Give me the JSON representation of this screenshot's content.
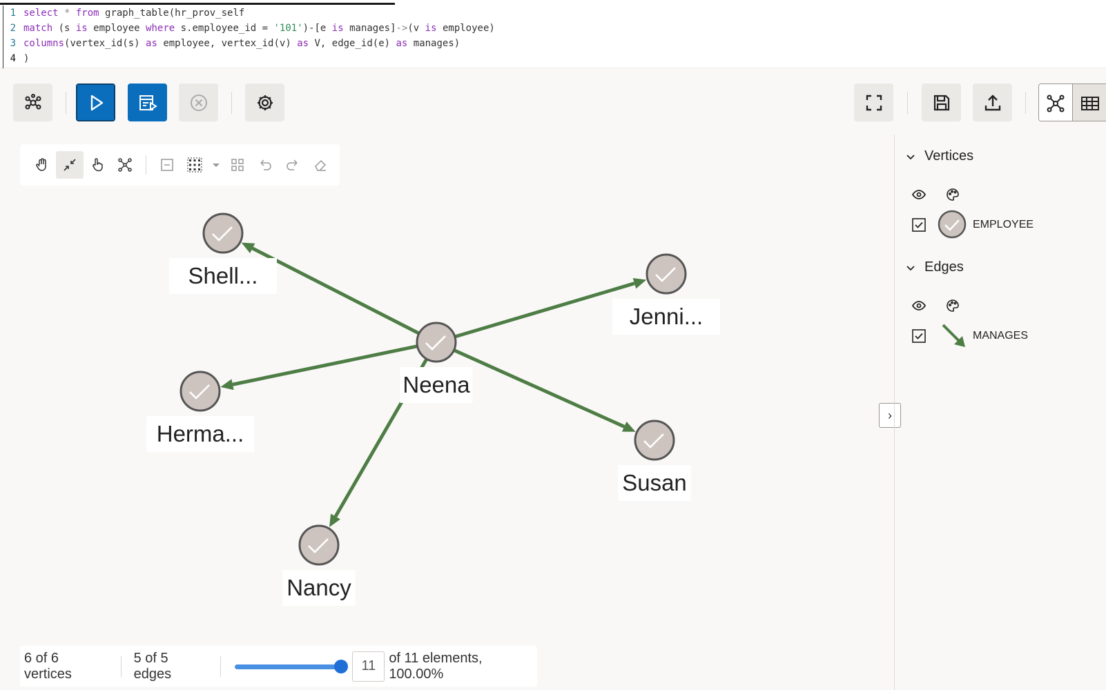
{
  "editor": {
    "lines": [
      {
        "num": "1",
        "text": [
          "select",
          " * ",
          "from",
          " graph_table(hr_prov_self"
        ]
      },
      {
        "num": "2",
        "text": [
          "match",
          " (s ",
          "is",
          " employee ",
          "where",
          " s.employee_id = ",
          "'101'",
          ")-[e ",
          "is",
          " manages]",
          "->",
          "(v ",
          "is",
          " employee)"
        ]
      },
      {
        "num": "3",
        "text": [
          "columns",
          "(vertex_id(s) ",
          "as",
          " employee, vertex_id(v) ",
          "as",
          " V, edge_id(e) ",
          "as",
          " manages)"
        ]
      },
      {
        "num": "4",
        "text": [
          ")"
        ]
      }
    ]
  },
  "toolbar": {
    "buttons": [
      "graph-icon",
      "play-icon",
      "run-script-icon",
      "cancel-icon",
      "gear-icon",
      "fullscreen-icon",
      "save-icon",
      "upload-icon"
    ],
    "views": [
      "graph-view-icon",
      "table-view-icon"
    ]
  },
  "graph": {
    "vertices": [
      {
        "id": "neena",
        "label": "Neena"
      },
      {
        "id": "shelley",
        "label": "Shell..."
      },
      {
        "id": "jennifer",
        "label": "Jenni..."
      },
      {
        "id": "hermann",
        "label": "Herma..."
      },
      {
        "id": "susan",
        "label": "Susan"
      },
      {
        "id": "nancy",
        "label": "Nancy"
      }
    ],
    "edges": [
      {
        "from": "neena",
        "to": "shelley"
      },
      {
        "from": "neena",
        "to": "jennifer"
      },
      {
        "from": "neena",
        "to": "hermann"
      },
      {
        "from": "neena",
        "to": "susan"
      },
      {
        "from": "neena",
        "to": "nancy"
      }
    ],
    "vertex_color": "#cdc4bf",
    "edge_color": "#4e7d45"
  },
  "status": {
    "vertices": "6 of 6 vertices",
    "edges": "5 of 5 edges",
    "count": "11",
    "elements": "of 11 elements, 100.00%"
  },
  "legend": {
    "vertices_title": "Vertices",
    "vertex_label": "EMPLOYEE",
    "edges_title": "Edges",
    "edge_label": "MANAGES"
  }
}
